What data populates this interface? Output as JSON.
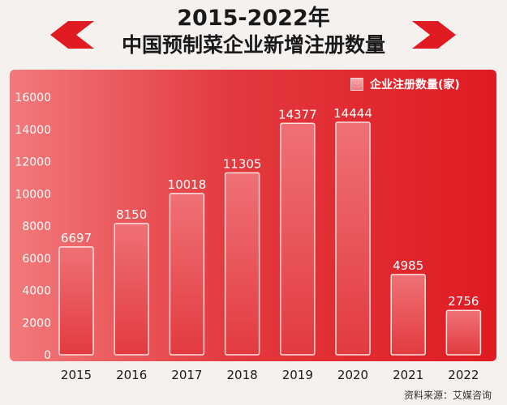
{
  "title": {
    "line1": "2015-2022年",
    "line2": "中国预制菜企业新增注册数量"
  },
  "legend": {
    "label": "企业注册数量(家)"
  },
  "source": "资料来源：艾媒咨询",
  "colors": {
    "accent": "#e31e25",
    "background": "#f4f1ef",
    "bar_top": "#ef7175",
    "bar_bottom": "#e23b3f"
  },
  "chart_data": {
    "type": "bar",
    "categories": [
      "2015",
      "2016",
      "2017",
      "2018",
      "2019",
      "2020",
      "2021",
      "2022"
    ],
    "series": [
      {
        "name": "企业注册数量(家)",
        "values": [
          6697,
          8150,
          10018,
          11305,
          14377,
          14444,
          4985,
          2756
        ]
      }
    ],
    "data_labels": [
      "6697",
      "8150",
      "10018",
      "11305",
      "14377",
      "14444",
      "4985",
      "2756"
    ],
    "y_ticks": [
      "0",
      "2000",
      "4000",
      "6000",
      "8000",
      "10000",
      "12000",
      "14000",
      "16000"
    ],
    "ylim": [
      0,
      16000
    ],
    "xlabel": "",
    "ylabel": "",
    "legend_position": "top-right",
    "grid": false
  }
}
